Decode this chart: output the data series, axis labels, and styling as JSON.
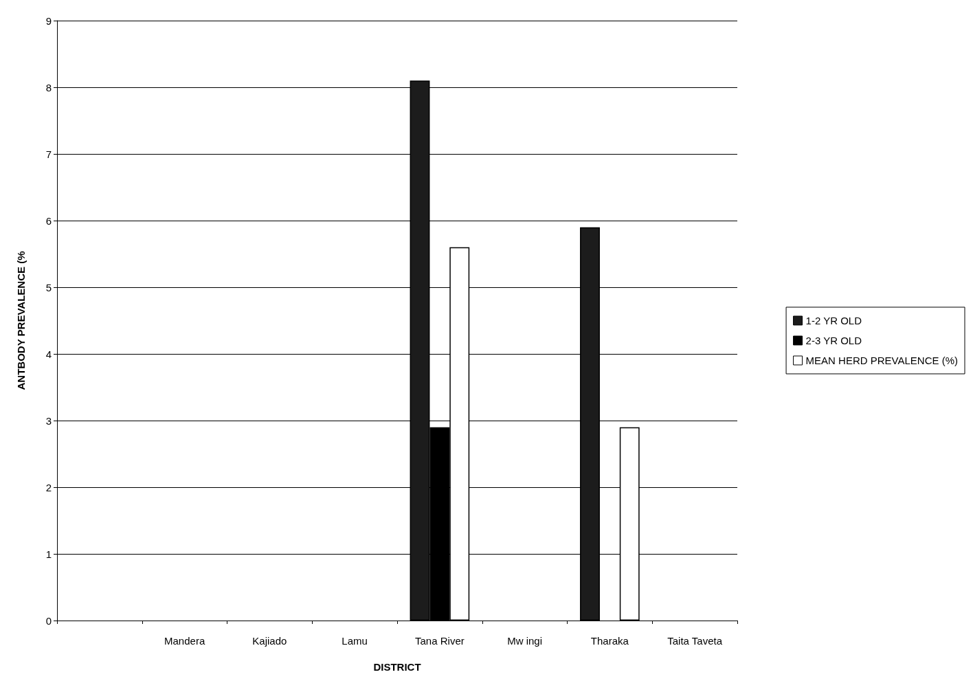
{
  "chart_data": {
    "type": "bar",
    "xlabel": "DISTRICT",
    "ylabel": "ANTBODY PREVALENCE (%",
    "categories": [
      null,
      "Mandera",
      "Kajiado",
      "Lamu",
      "Tana River",
      "Mw ingi",
      "Tharaka",
      "Taita Taveta"
    ],
    "series": [
      {
        "name": "1-2 YR OLD",
        "color": "#1c1c1c",
        "values": [
          null,
          null,
          null,
          null,
          8.1,
          null,
          5.9,
          null
        ]
      },
      {
        "name": "2-3 YR OLD",
        "color": "#000000",
        "values": [
          null,
          null,
          null,
          null,
          2.9,
          null,
          null,
          null
        ]
      },
      {
        "name": "MEAN HERD PREVALENCE (%)",
        "color": "#ffffff",
        "values": [
          null,
          null,
          null,
          null,
          5.6,
          null,
          2.9,
          null
        ]
      }
    ],
    "ylim": [
      0,
      9
    ],
    "yticks": [
      0,
      1,
      2,
      3,
      4,
      5,
      6,
      7,
      8,
      9
    ],
    "grid": "y",
    "legend": "right"
  }
}
